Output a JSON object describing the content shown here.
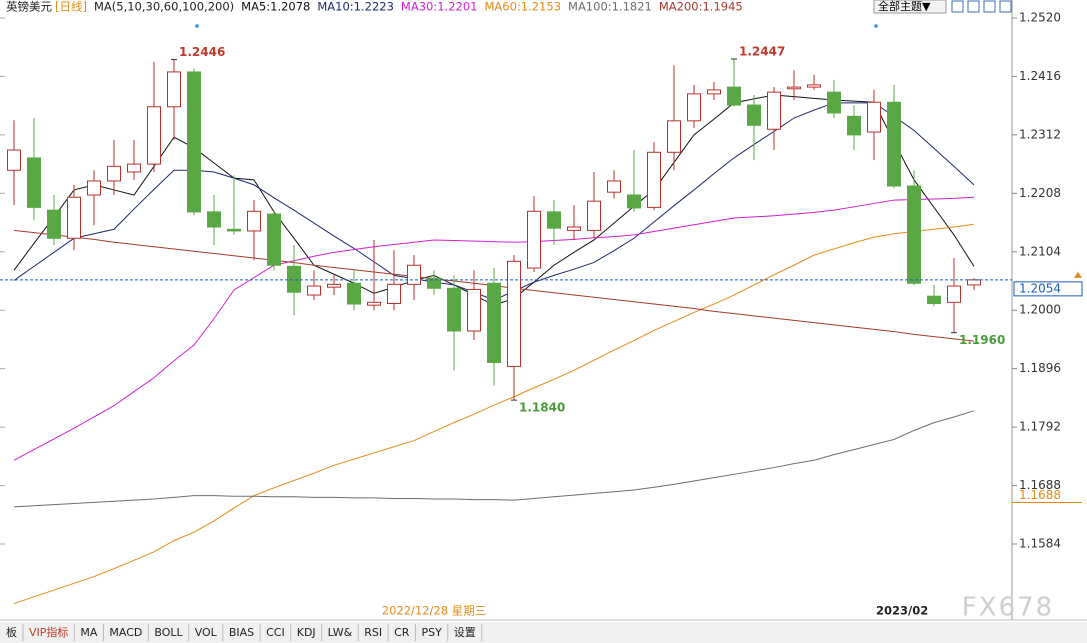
{
  "chart_data": {
    "type": "candlestick",
    "title": "英镑美元",
    "period": "[日线]",
    "ma_title": "MA(5,10,30,60,100,200)",
    "ylim": [
      1.1479,
      1.2552
    ],
    "yticks": [
      {
        "value": 1.252,
        "label": "1.2520"
      },
      1.2416,
      1.2312,
      1.2208,
      1.2104,
      {
        "value": 1.2,
        "label": "1.2000"
      },
      1.1896,
      1.1792,
      1.1688,
      1.1584
    ],
    "categories": [
      null,
      null,
      null,
      null,
      null,
      null,
      null,
      null,
      null,
      null,
      null,
      null,
      null,
      null,
      null,
      null,
      null,
      null,
      null,
      null,
      null,
      "2022/12/28 星期三",
      null,
      null,
      null,
      null,
      null,
      null,
      null,
      null,
      null,
      null,
      null,
      null,
      null,
      null,
      null,
      null,
      null,
      null,
      null,
      null,
      null,
      "2023/02",
      null,
      null,
      null,
      null,
      null
    ],
    "up_color": "#b8322a",
    "down_color": "#5aa845",
    "ohlc": [
      [
        1.2249,
        1.2338,
        1.2187,
        1.2285
      ],
      [
        1.2271,
        1.2342,
        1.216,
        1.2183
      ],
      [
        1.2178,
        1.2205,
        1.2116,
        1.2128
      ],
      [
        1.2128,
        1.2223,
        1.2107,
        1.2201
      ],
      [
        1.2205,
        1.2249,
        1.2151,
        1.223
      ],
      [
        1.223,
        1.2303,
        1.2205,
        1.2256
      ],
      [
        1.2246,
        1.2303,
        1.2232,
        1.226
      ],
      [
        1.226,
        1.2442,
        1.2246,
        1.2362
      ],
      [
        1.2362,
        1.2446,
        1.2303,
        1.2424
      ],
      [
        1.2424,
        1.243,
        1.2169,
        1.2175
      ],
      [
        1.2175,
        1.2205,
        1.2116,
        1.2148
      ],
      [
        1.2144,
        1.224,
        1.2134,
        1.2141
      ],
      [
        1.2141,
        1.2196,
        1.2089,
        1.2176
      ],
      [
        1.2171,
        1.2178,
        1.2071,
        1.208
      ],
      [
        1.2078,
        1.2116,
        1.1991,
        1.2032
      ],
      [
        1.2027,
        1.2071,
        1.2018,
        1.2043
      ],
      [
        1.2041,
        1.2062,
        1.2027,
        1.2046
      ],
      [
        1.2048,
        1.2071,
        1.2,
        1.2011
      ],
      [
        1.2009,
        1.2125,
        1.2,
        1.2014
      ],
      [
        1.2012,
        1.2107,
        1.2,
        1.2046
      ],
      [
        1.2046,
        1.2098,
        1.2018,
        1.208
      ],
      [
        1.2057,
        1.2071,
        1.2027,
        1.2039
      ],
      [
        1.2039,
        1.2062,
        1.1893,
        1.1963
      ],
      [
        1.1963,
        1.2071,
        1.1947,
        1.2037
      ],
      [
        1.2048,
        1.2075,
        1.1866,
        1.1907
      ],
      [
        1.19,
        1.2098,
        1.184,
        1.2087
      ],
      [
        1.2075,
        1.2203,
        1.2068,
        1.2176
      ],
      [
        1.2175,
        1.2196,
        1.2116,
        1.2146
      ],
      [
        1.2142,
        1.2187,
        1.2125,
        1.2148
      ],
      [
        1.2142,
        1.2246,
        1.2128,
        1.2194
      ],
      [
        1.221,
        1.2249,
        1.2199,
        1.223
      ],
      [
        1.2205,
        1.2285,
        1.2175,
        1.2182
      ],
      [
        1.2183,
        1.2299,
        1.2178,
        1.2281
      ],
      [
        1.2281,
        1.2436,
        1.2249,
        1.2337
      ],
      [
        1.2337,
        1.2401,
        1.2324,
        1.2385
      ],
      [
        1.2385,
        1.2406,
        1.2374,
        1.2392
      ],
      [
        1.2397,
        1.2447,
        1.2363,
        1.2365
      ],
      [
        1.2365,
        1.2383,
        1.2267,
        1.2329
      ],
      [
        1.2322,
        1.2397,
        1.2285,
        1.2388
      ],
      [
        1.2394,
        1.2427,
        1.2374,
        1.2397
      ],
      [
        1.2397,
        1.2419,
        1.2392,
        1.2401
      ],
      [
        1.2388,
        1.241,
        1.2342,
        1.2351
      ],
      [
        1.2345,
        1.2365,
        1.2285,
        1.2312
      ],
      [
        1.2317,
        1.2392,
        1.2267,
        1.237
      ],
      [
        1.237,
        1.2401,
        1.2217,
        1.2221
      ],
      [
        1.2221,
        1.2249,
        1.2045,
        1.2048
      ],
      [
        1.2025,
        1.2045,
        1.2007,
        1.2012
      ],
      [
        1.2014,
        1.2093,
        1.196,
        1.2043
      ],
      [
        1.2045,
        1.2057,
        1.2036,
        1.2054
      ]
    ],
    "series": [
      {
        "name": "MA5:1.2078",
        "color": "#111111",
        "values": [
          1.2071,
          1.2119,
          1.2166,
          1.2214,
          1.2223,
          1.2214,
          1.2205,
          1.2256,
          1.2308,
          1.2289,
          1.2262,
          1.2235,
          1.2232,
          1.2175,
          1.2128,
          1.208,
          1.2064,
          1.2048,
          1.203,
          1.2041,
          1.2053,
          1.2062,
          1.2045,
          1.2027,
          1.2009,
          1.2021,
          1.205,
          1.208,
          1.2103,
          1.2125,
          1.2155,
          1.2185,
          1.2214,
          1.2263,
          1.2312,
          1.234,
          1.2369,
          1.2376,
          1.2383,
          1.238,
          1.2377,
          1.2374,
          1.2372,
          1.237,
          1.23,
          1.2232,
          1.2183,
          1.2134,
          1.2078
        ]
      },
      {
        "name": "MA10:1.2223",
        "color": "#1c2a6e",
        "values": [
          1.2053,
          1.2078,
          1.2103,
          1.2128,
          1.2136,
          1.2144,
          1.218,
          1.2215,
          1.2249,
          1.2249,
          1.2246,
          1.2235,
          1.2223,
          1.22,
          1.2178,
          1.2155,
          1.2132,
          1.211,
          1.2086,
          1.2062,
          1.2056,
          1.205,
          1.2045,
          1.2032,
          1.2018,
          1.2034,
          1.205,
          1.2062,
          1.2073,
          1.2085,
          1.2106,
          1.2128,
          1.2157,
          1.2186,
          1.2214,
          1.2243,
          1.2271,
          1.2295,
          1.2318,
          1.2342,
          1.2356,
          1.2369,
          1.2369,
          1.2369,
          1.2345,
          1.232,
          1.2288,
          1.2256,
          1.2223
        ]
      },
      {
        "name": "MA30:1.2201",
        "color": "#d21fd2",
        "values": [
          1.1733,
          1.1752,
          1.1771,
          1.179,
          1.181,
          1.183,
          1.1855,
          1.188,
          1.191,
          1.1938,
          1.1985,
          1.2036,
          1.2058,
          1.208,
          1.2088,
          1.2096,
          1.2103,
          1.2108,
          1.2113,
          1.2117,
          1.2121,
          1.2125,
          1.2124,
          1.2123,
          1.2122,
          1.2121,
          1.2122,
          1.2124,
          1.2126,
          1.2129,
          1.2131,
          1.2134,
          1.214,
          1.2146,
          1.2152,
          1.2158,
          1.2164,
          1.2166,
          1.2168,
          1.2171,
          1.2174,
          1.2178,
          1.2184,
          1.219,
          1.2196,
          1.2197,
          1.2198,
          1.2199,
          1.2201
        ]
      },
      {
        "name": "MA60:1.2153",
        "color": "#e38b17",
        "values": [
          1.1478,
          1.149,
          1.1502,
          1.1514,
          1.1526,
          1.154,
          1.1555,
          1.157,
          1.159,
          1.1605,
          1.1625,
          1.1648,
          1.167,
          1.1684,
          1.1697,
          1.171,
          1.1724,
          1.1735,
          1.1746,
          1.1757,
          1.1768,
          1.1784,
          1.18,
          1.1815,
          1.1831,
          1.1846,
          1.1862,
          1.1877,
          1.1893,
          1.1911,
          1.1929,
          1.1946,
          1.1964,
          1.198,
          1.1996,
          1.2011,
          1.2027,
          1.2045,
          1.2063,
          1.208,
          1.2098,
          1.2109,
          1.212,
          1.213,
          1.2136,
          1.214,
          1.2144,
          1.2148,
          1.2153
        ]
      },
      {
        "name": "MA100:1.1821",
        "color": "#6e6e6e",
        "values": [
          1.165,
          1.1652,
          1.1654,
          1.1656,
          1.1658,
          1.166,
          1.1662,
          1.1664,
          1.1667,
          1.167,
          1.167,
          1.1669,
          1.1669,
          1.1668,
          1.1668,
          1.1667,
          1.1667,
          1.1666,
          1.1666,
          1.1665,
          1.1665,
          1.1664,
          1.1664,
          1.1663,
          1.1663,
          1.1662,
          1.1665,
          1.1668,
          1.1671,
          1.1674,
          1.1677,
          1.168,
          1.1685,
          1.169,
          1.1696,
          1.1702,
          1.1708,
          1.1714,
          1.172,
          1.1727,
          1.1733,
          1.1743,
          1.1752,
          1.1761,
          1.177,
          1.1786,
          1.18,
          1.181,
          1.1821
        ]
      },
      {
        "name": "MA200:1.1945",
        "color": "#a63a2c",
        "values": [
          1.2142,
          1.2138,
          1.2134,
          1.213,
          1.2126,
          1.2121,
          1.2117,
          1.2113,
          1.2109,
          1.2105,
          1.2101,
          1.2097,
          1.2093,
          1.2089,
          1.2085,
          1.208,
          1.2076,
          1.2072,
          1.2068,
          1.2064,
          1.206,
          1.2056,
          1.2052,
          1.2048,
          1.2044,
          1.2039,
          1.2035,
          1.2031,
          1.2027,
          1.2023,
          1.2019,
          1.2015,
          1.2011,
          1.2007,
          1.2003,
          1.1998,
          1.1994,
          1.199,
          1.1986,
          1.1982,
          1.1978,
          1.1974,
          1.197,
          1.1966,
          1.1962,
          1.1957,
          1.1953,
          1.1949,
          1.1945
        ]
      }
    ],
    "annotations": [
      {
        "value": 1.2446,
        "label": "1.2446",
        "color": "#c0392b"
      },
      {
        "value": 1.184,
        "label": "1.1840",
        "color": "#4a9a3a"
      },
      {
        "value": 1.2447,
        "label": "1.2447",
        "color": "#c0392b"
      },
      {
        "value": 1.196,
        "label": "1.1960",
        "color": "#4a9a3a"
      }
    ],
    "price_tags": [
      {
        "value": 1.2054,
        "label": "1.2054",
        "color": "#1b5fb5"
      },
      {
        "value": 1.1688,
        "label": "1.1688",
        "color": "#e38b17"
      }
    ]
  },
  "toolbar": {
    "theme_button": "全部主题▼"
  },
  "tabs": [
    "板",
    "VIP指标",
    "MA",
    "MACD",
    "BOLL",
    "VOL",
    "BIAS",
    "CCI",
    "KDJ",
    "LW&",
    "RSI",
    "CR",
    "PSY",
    "设置"
  ],
  "watermark": "FX678"
}
